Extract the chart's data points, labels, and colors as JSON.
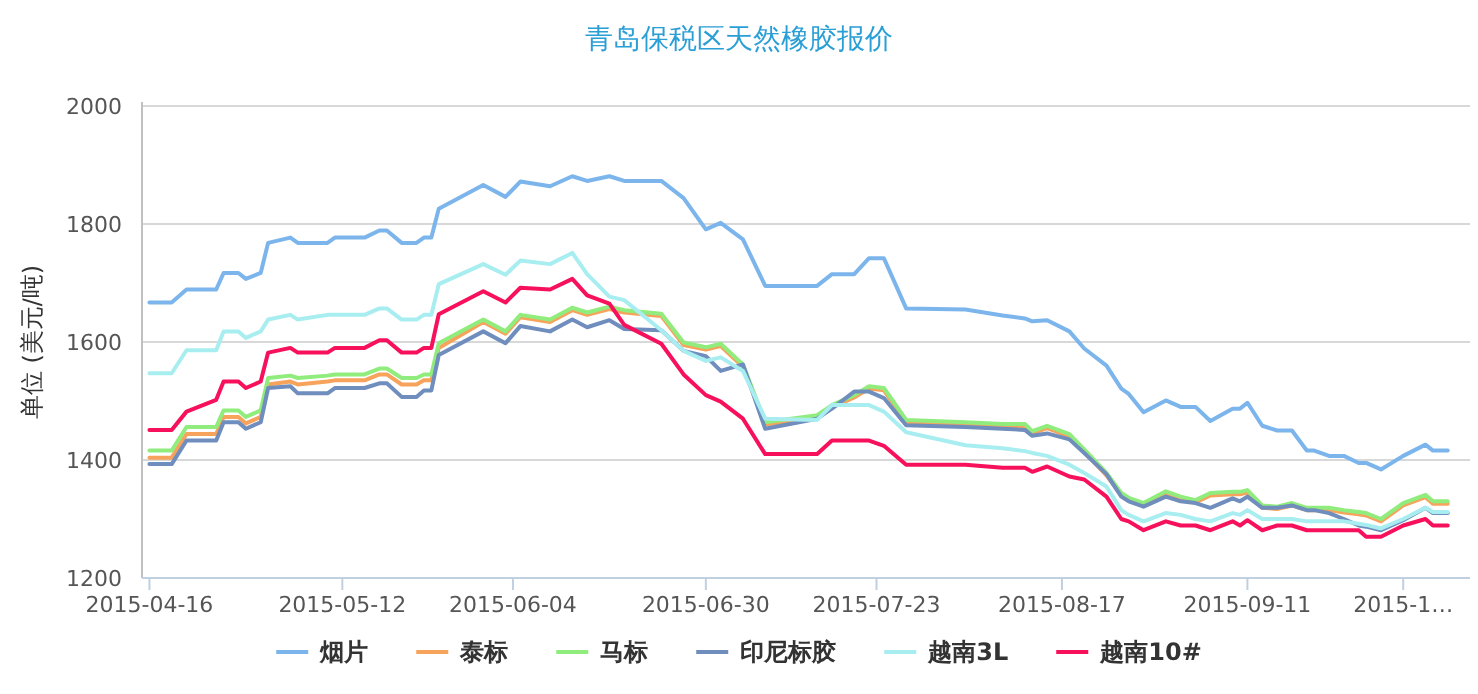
{
  "chart_data": {
    "type": "line",
    "title": "青岛保税区天然橡胶报价",
    "ylabel": "单位 (美元/吨)",
    "x": [
      "2015-04-16",
      "2015-04-19",
      "2015-04-21",
      "2015-04-25",
      "2015-04-26",
      "2015-04-28",
      "2015-04-29",
      "2015-05-01",
      "2015-05-02",
      "2015-05-05",
      "2015-05-06",
      "2015-05-10",
      "2015-05-11",
      "2015-05-15",
      "2015-05-17",
      "2015-05-18",
      "2015-05-20",
      "2015-05-22",
      "2015-05-23",
      "2015-05-24",
      "2015-05-25",
      "2015-05-31",
      "2015-06-03",
      "2015-06-05",
      "2015-06-09",
      "2015-06-12",
      "2015-06-14",
      "2015-06-17",
      "2015-06-19",
      "2015-06-24",
      "2015-06-27",
      "2015-06-30",
      "2015-07-02",
      "2015-07-05",
      "2015-07-08",
      "2015-07-15",
      "2015-07-17",
      "2015-07-20",
      "2015-07-22",
      "2015-07-24",
      "2015-07-27",
      "2015-08-04",
      "2015-08-09",
      "2015-08-12",
      "2015-08-13",
      "2015-08-15",
      "2015-08-18",
      "2015-08-20",
      "2015-08-23",
      "2015-08-25",
      "2015-08-26",
      "2015-08-28",
      "2015-08-31",
      "2015-09-02",
      "2015-09-04",
      "2015-09-06",
      "2015-09-09",
      "2015-09-10",
      "2015-09-11",
      "2015-09-13",
      "2015-09-15",
      "2015-09-17",
      "2015-09-19",
      "2015-09-20",
      "2015-09-22",
      "2015-09-24",
      "2015-09-26",
      "2015-09-27",
      "2015-09-29",
      "2015-10-02",
      "2015-10-05",
      "2015-10-06",
      "2015-10-08"
    ],
    "series": [
      {
        "name": "烟片",
        "color": "#7cb5ec",
        "values": [
          1667,
          1667,
          1689,
          1689,
          1717,
          1717,
          1707,
          1717,
          1768,
          1777,
          1768,
          1768,
          1777,
          1777,
          1789,
          1789,
          1768,
          1768,
          1777,
          1777,
          1826,
          1866,
          1846,
          1872,
          1864,
          1881,
          1873,
          1881,
          1873,
          1873,
          1844,
          1791,
          1802,
          1774,
          1695,
          1695,
          1715,
          1715,
          1742,
          1742,
          1657,
          1655,
          1645,
          1640,
          1635,
          1637,
          1618,
          1589,
          1560,
          1521,
          1512,
          1481,
          1501,
          1490,
          1490,
          1466,
          1487,
          1487,
          1497,
          1458,
          1450,
          1450,
          1416,
          1416,
          1407,
          1407,
          1395,
          1395,
          1384,
          1407,
          1426,
          1416,
          1416
        ]
      },
      {
        "name": "泰标",
        "color": "#f7a35c",
        "values": [
          1404,
          1404,
          1444,
          1444,
          1473,
          1473,
          1462,
          1473,
          1528,
          1533,
          1528,
          1533,
          1535,
          1535,
          1545,
          1545,
          1528,
          1528,
          1535,
          1535,
          1590,
          1634,
          1614,
          1642,
          1634,
          1654,
          1646,
          1656,
          1650,
          1644,
          1595,
          1587,
          1593,
          1558,
          1460,
          1472,
          1489,
          1506,
          1521,
          1518,
          1464,
          1460,
          1457,
          1457,
          1445,
          1454,
          1440,
          1414,
          1374,
          1340,
          1332,
          1323,
          1343,
          1334,
          1328,
          1340,
          1342,
          1342,
          1345,
          1319,
          1317,
          1323,
          1315,
          1315,
          1315,
          1311,
          1308,
          1306,
          1296,
          1323,
          1337,
          1326,
          1326
        ]
      },
      {
        "name": "马标",
        "color": "#90ed7d",
        "values": [
          1416,
          1416,
          1456,
          1456,
          1484,
          1484,
          1473,
          1484,
          1539,
          1543,
          1539,
          1543,
          1545,
          1545,
          1555,
          1555,
          1539,
          1539,
          1545,
          1545,
          1598,
          1638,
          1618,
          1646,
          1638,
          1658,
          1650,
          1660,
          1654,
          1648,
          1599,
          1591,
          1597,
          1562,
          1464,
          1476,
          1493,
          1510,
          1525,
          1522,
          1468,
          1464,
          1461,
          1461,
          1449,
          1458,
          1444,
          1418,
          1378,
          1344,
          1336,
          1327,
          1347,
          1338,
          1332,
          1344,
          1346,
          1346,
          1349,
          1323,
          1321,
          1327,
          1319,
          1319,
          1319,
          1315,
          1312,
          1310,
          1300,
          1327,
          1341,
          1330,
          1330
        ]
      },
      {
        "name": "印尼标胶",
        "color": "#6f8dbd",
        "values": [
          1393,
          1393,
          1433,
          1433,
          1464,
          1464,
          1453,
          1464,
          1522,
          1525,
          1513,
          1513,
          1522,
          1522,
          1530,
          1530,
          1507,
          1507,
          1518,
          1518,
          1578,
          1618,
          1598,
          1627,
          1618,
          1638,
          1625,
          1637,
          1622,
          1620,
          1585,
          1576,
          1551,
          1562,
          1453,
          1470,
          1487,
          1516,
          1516,
          1505,
          1459,
          1456,
          1453,
          1451,
          1441,
          1445,
          1435,
          1412,
          1376,
          1338,
          1330,
          1321,
          1338,
          1330,
          1327,
          1319,
          1335,
          1330,
          1338,
          1319,
          1319,
          1323,
          1315,
          1315,
          1310,
          1300,
          1289,
          1287,
          1281,
          1298,
          1319,
          1310,
          1310
        ]
      },
      {
        "name": "越南3L",
        "color": "#a8eef0",
        "values": [
          1547,
          1547,
          1586,
          1586,
          1618,
          1618,
          1607,
          1618,
          1638,
          1646,
          1638,
          1646,
          1646,
          1646,
          1657,
          1657,
          1638,
          1638,
          1646,
          1646,
          1698,
          1732,
          1714,
          1738,
          1732,
          1751,
          1715,
          1677,
          1671,
          1620,
          1585,
          1568,
          1574,
          1551,
          1470,
          1468,
          1493,
          1493,
          1493,
          1482,
          1447,
          1425,
          1420,
          1415,
          1412,
          1407,
          1392,
          1378,
          1355,
          1315,
          1307,
          1296,
          1310,
          1307,
          1300,
          1296,
          1310,
          1307,
          1315,
          1300,
          1300,
          1300,
          1296,
          1296,
          1296,
          1296,
          1292,
          1290,
          1284,
          1300,
          1319,
          1312,
          1312
        ]
      },
      {
        "name": "越南10#",
        "color": "#f7105c",
        "values": [
          1451,
          1451,
          1482,
          1502,
          1533,
          1533,
          1522,
          1533,
          1582,
          1590,
          1582,
          1582,
          1590,
          1590,
          1603,
          1603,
          1582,
          1582,
          1590,
          1590,
          1647,
          1686,
          1667,
          1692,
          1689,
          1707,
          1679,
          1665,
          1629,
          1597,
          1545,
          1510,
          1499,
          1470,
          1410,
          1410,
          1433,
          1433,
          1433,
          1424,
          1392,
          1392,
          1387,
          1387,
          1380,
          1389,
          1372,
          1367,
          1338,
          1300,
          1296,
          1281,
          1296,
          1289,
          1289,
          1281,
          1296,
          1289,
          1298,
          1281,
          1289,
          1289,
          1281,
          1281,
          1281,
          1281,
          1281,
          1270,
          1270,
          1289,
          1300,
          1289,
          1289
        ]
      }
    ],
    "xlim": [
      "2015-04-15",
      "2015-10-11"
    ],
    "xticks": [
      {
        "value": "2015-04-16",
        "label": "2015-04-16"
      },
      {
        "value": "2015-05-12",
        "label": "2015-05-12"
      },
      {
        "value": "2015-06-04",
        "label": "2015-06-04"
      },
      {
        "value": "2015-06-30",
        "label": "2015-06-30"
      },
      {
        "value": "2015-07-23",
        "label": "2015-07-23"
      },
      {
        "value": "2015-08-17",
        "label": "2015-08-17"
      },
      {
        "value": "2015-09-11",
        "label": "2015-09-11"
      },
      {
        "value": "2015-10-02",
        "label": "2015-1…"
      }
    ],
    "ylim": [
      1200,
      2000
    ],
    "yticks": [
      1200,
      1400,
      1600,
      1800,
      2000
    ],
    "grid": "y",
    "legend": "bottom",
    "marker": "none",
    "line_style": "solid"
  }
}
